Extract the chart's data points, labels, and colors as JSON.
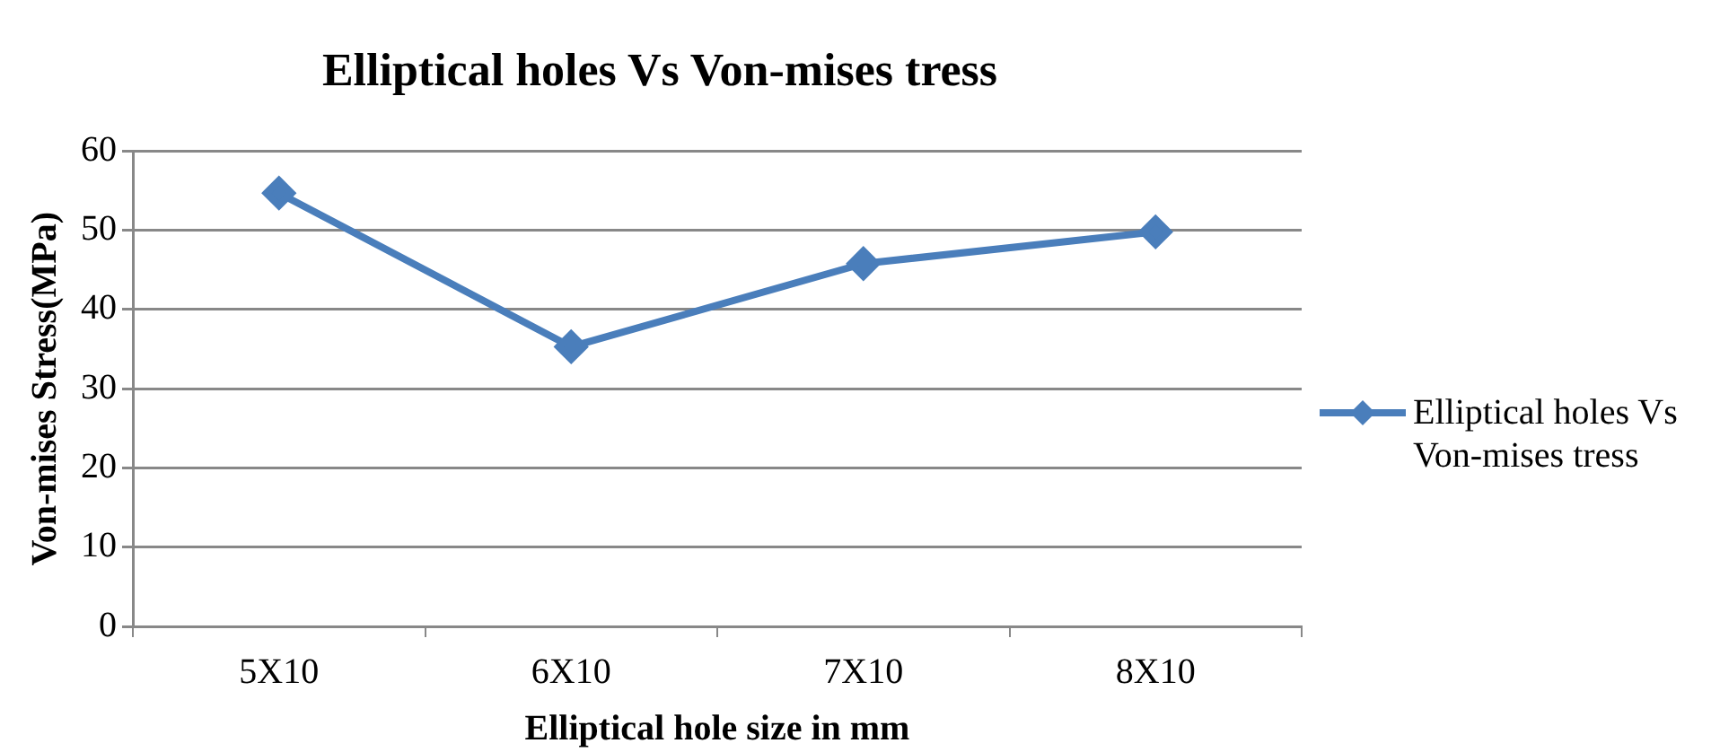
{
  "chart_data": {
    "type": "line",
    "title": "Elliptical holes Vs Von-mises tress",
    "xlabel": "Elliptical hole size in mm",
    "ylabel": "Von-mises Stress(MPa)",
    "categories": [
      "5X10",
      "6X10",
      "7X10",
      "8X10"
    ],
    "series": [
      {
        "name": "Elliptical holes Vs Von-mises tress",
        "color": "#4a7ebb",
        "values": [
          54.7,
          35.3,
          45.8,
          49.8
        ]
      }
    ],
    "ylim": [
      0,
      60
    ],
    "yticks": [
      0,
      10,
      20,
      30,
      40,
      50,
      60
    ],
    "grid": "y",
    "legend": "right",
    "marker": "diamond",
    "line_style": "solid"
  }
}
